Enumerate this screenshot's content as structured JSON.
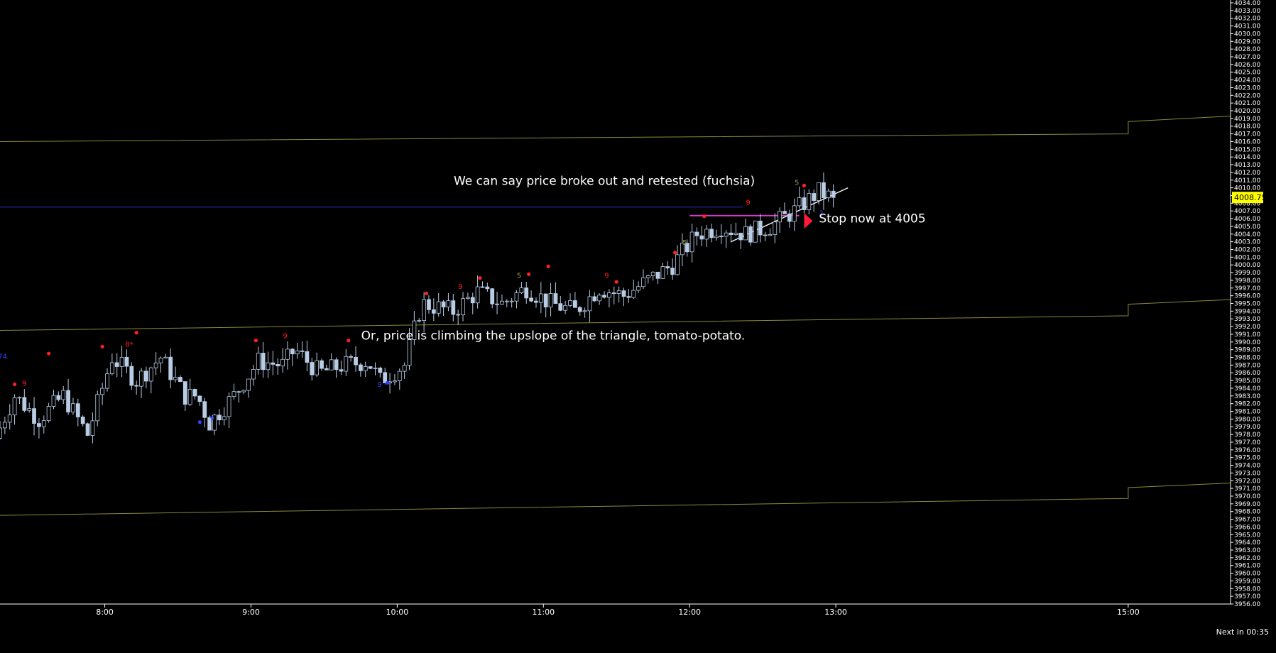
{
  "chart_data": {
    "type": "candlestick",
    "title": "",
    "xlabel": "",
    "ylabel": "",
    "ylim": [
      3956,
      4034
    ],
    "y_tick_step": 1,
    "time_range": [
      "07:17",
      "15:42"
    ],
    "x_ticks": [
      "8:00",
      "9:00",
      "10:00",
      "11:00",
      "12:00",
      "13:00",
      "15:00"
    ],
    "grid": false,
    "current_price": "4008.75",
    "footer_text": "Next in 00:35",
    "colors": {
      "background": "#000000",
      "candle_up": "#000000",
      "candle_down": "#b8cce4",
      "candle_outline": "#b8cce4",
      "channel": "#8a8a3a",
      "blue_line": "#2432c8",
      "fuchsia_line": "#d040c0",
      "trend_line": "#ffffff",
      "price_tag": "#ffff00",
      "marker_red": "#ff2020",
      "marker_blue": "#3040ff",
      "marker_olive": "#9a9a50",
      "arrow": "#ff1a3a"
    },
    "candle_series": {
      "anchors": [
        [
          "07:17",
          3977.5
        ],
        [
          "07:25",
          3983
        ],
        [
          "07:35",
          3980
        ],
        [
          "07:45",
          3983
        ],
        [
          "07:55",
          3978
        ],
        [
          "08:05",
          3988
        ],
        [
          "08:15",
          3985
        ],
        [
          "08:25",
          3988
        ],
        [
          "08:35",
          3983
        ],
        [
          "08:40",
          3983
        ],
        [
          "08:45",
          3979.5
        ],
        [
          "08:55",
          3983
        ],
        [
          "09:05",
          3987.5
        ],
        [
          "09:15",
          3987
        ],
        [
          "09:20",
          3989
        ],
        [
          "09:30",
          3986
        ],
        [
          "09:40",
          3987
        ],
        [
          "09:50",
          3987.5
        ],
        [
          "09:55",
          3985
        ],
        [
          "10:05",
          3987
        ],
        [
          "10:12",
          3995
        ],
        [
          "10:25",
          3994
        ],
        [
          "10:35",
          3996.5
        ],
        [
          "10:45",
          3995
        ],
        [
          "10:55",
          3997
        ],
        [
          "11:05",
          3995
        ],
        [
          "11:15",
          3994
        ],
        [
          "11:25",
          3997
        ],
        [
          "11:35",
          3996
        ],
        [
          "11:45",
          3998
        ],
        [
          "11:55",
          4000
        ],
        [
          "12:05",
          4004
        ],
        [
          "12:15",
          4005
        ],
        [
          "12:25",
          4004
        ],
        [
          "12:35",
          4005
        ],
        [
          "12:45",
          4007
        ],
        [
          "12:55",
          4009.5
        ],
        [
          "13:00",
          4008.75
        ]
      ]
    },
    "lines": [
      {
        "name": "upper-channel",
        "points": [
          [
            "07:17",
            4016
          ],
          [
            "15:00",
            4017
          ],
          [
            "15:00",
            4018.6
          ],
          [
            "15:42",
            4019.3
          ]
        ]
      },
      {
        "name": "middle-channel",
        "points": [
          [
            "07:17",
            3991.5
          ],
          [
            "15:00",
            3993.4
          ],
          [
            "15:00",
            3994.9
          ],
          [
            "15:42",
            3995.5
          ]
        ]
      },
      {
        "name": "lower-channel",
        "points": [
          [
            "07:17",
            3967.5
          ],
          [
            "15:00",
            3969.7
          ],
          [
            "15:00",
            3971.1
          ],
          [
            "15:42",
            3971.7
          ]
        ]
      },
      {
        "name": "blue-level",
        "points": [
          [
            "07:17",
            4007.5
          ],
          [
            "12:22",
            4007.5
          ]
        ]
      },
      {
        "name": "fuchsia-level",
        "points": [
          [
            "12:00",
            4006.4
          ],
          [
            "12:45",
            4006.4
          ]
        ]
      },
      {
        "name": "trend-line",
        "points": [
          [
            "12:17",
            4003
          ],
          [
            "13:05",
            4010
          ]
        ]
      }
    ],
    "markers": [
      {
        "type": "dot",
        "color": "red",
        "time": "07:23",
        "price": 3984.5
      },
      {
        "type": "dot",
        "color": "red",
        "time": "07:37",
        "price": 3988.5
      },
      {
        "type": "dot",
        "color": "red",
        "time": "07:59",
        "price": 3989.4
      },
      {
        "type": "dot",
        "color": "red",
        "time": "08:13",
        "price": 3991.2
      },
      {
        "type": "dot",
        "color": "blue",
        "time": "08:39",
        "price": 3979.6
      },
      {
        "type": "dot",
        "color": "red",
        "time": "09:02",
        "price": 3990.2
      },
      {
        "type": "dot",
        "color": "red",
        "time": "09:40",
        "price": 3990.2
      },
      {
        "type": "dot",
        "color": "blue",
        "time": "09:56",
        "price": 3984.7
      },
      {
        "type": "dot",
        "color": "red",
        "time": "10:12",
        "price": 3996.3
      },
      {
        "type": "dot",
        "color": "red",
        "time": "10:34",
        "price": 3998.3
      },
      {
        "type": "dot",
        "color": "red",
        "time": "10:54",
        "price": 3998.8
      },
      {
        "type": "dot",
        "color": "red",
        "time": "11:02",
        "price": 3999.8
      },
      {
        "type": "dot",
        "color": "red",
        "time": "11:30",
        "price": 3997.8
      },
      {
        "type": "dot",
        "color": "red",
        "time": "11:54",
        "price": 4001.6
      },
      {
        "type": "dot",
        "color": "red",
        "time": "12:06",
        "price": 4006.3
      },
      {
        "type": "dot",
        "color": "red",
        "time": "12:47",
        "price": 4010.3
      },
      {
        "type": "text",
        "color": "red",
        "time": "07:27",
        "price": 3984.3,
        "text": "9"
      },
      {
        "type": "text",
        "color": "blue",
        "time": "07:18",
        "price": 3987.8,
        "text": "74"
      },
      {
        "type": "text",
        "color": "red",
        "time": "08:10",
        "price": 3989.4,
        "text": "8*"
      },
      {
        "type": "text",
        "color": "blue",
        "time": "08:44",
        "price": 3979.8,
        "text": "9"
      },
      {
        "type": "text",
        "color": "red",
        "time": "09:14",
        "price": 3990.5,
        "text": "9"
      },
      {
        "type": "text",
        "color": "blue",
        "time": "09:54",
        "price": 3984.2,
        "text": "9 *"
      },
      {
        "type": "text",
        "color": "red",
        "time": "10:26",
        "price": 3996.9,
        "text": "9"
      },
      {
        "type": "text",
        "color": "olive",
        "time": "10:50",
        "price": 3998.3,
        "text": "5"
      },
      {
        "type": "text",
        "color": "red",
        "time": "11:26",
        "price": 3998.3,
        "text": "9"
      },
      {
        "type": "text",
        "color": "olive",
        "time": "11:58",
        "price": 4002.6,
        "text": "5"
      },
      {
        "type": "text",
        "color": "red",
        "time": "12:24",
        "price": 4007.8,
        "text": "9"
      },
      {
        "type": "text",
        "color": "olive",
        "time": "12:44",
        "price": 4010.4,
        "text": "5"
      },
      {
        "type": "text",
        "color": "blue",
        "time": "12:54",
        "price": 4006.4,
        "text": "2"
      }
    ],
    "arrow": {
      "time": "12:47",
      "price": 4005.7,
      "direction": "right",
      "color": "red"
    },
    "annotations": [
      {
        "text": "We can say price broke out and retested (fuchsia)",
        "time": "11:25",
        "price": 4010.4
      },
      {
        "text": "Stop now at 4005",
        "time": "13:15",
        "price": 4005.5
      },
      {
        "text": "Or, price is climbing the upslope of the triangle, tomato-potato.",
        "time": "11:04",
        "price": 3990.3
      }
    ]
  }
}
